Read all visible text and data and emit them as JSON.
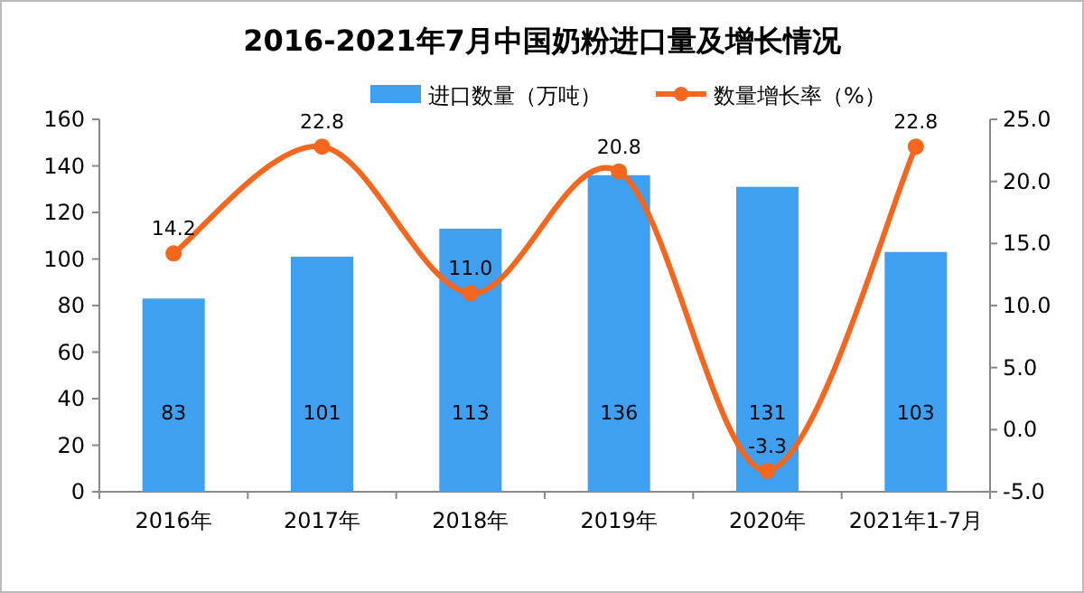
{
  "chart_data": {
    "type": "bar",
    "title": "2016-2021年7月中国奶粉进口量及增长情况",
    "categories": [
      "2016年",
      "2017年",
      "2018年",
      "2019年",
      "2020年",
      "2021年1-7月"
    ],
    "series": [
      {
        "name": "进口数量（万吨）",
        "color": "#3f9ff0",
        "values": [
          83,
          101,
          113,
          136,
          131,
          103
        ]
      },
      {
        "name": "数量增长率（%）",
        "type": "line",
        "axis": "y2",
        "color": "#f5661e",
        "marker": "circle",
        "values": [
          14.2,
          22.8,
          11.0,
          20.8,
          -3.3,
          22.8
        ],
        "value_labels": [
          "14.2",
          "22.8",
          "11.0",
          "20.8",
          "-3.3",
          "22.8"
        ]
      }
    ],
    "ylim": [
      0,
      160
    ],
    "yticks": [
      0,
      20,
      40,
      60,
      80,
      100,
      120,
      140,
      160
    ],
    "y2lim": [
      -5,
      25
    ],
    "y2ticks": [
      {
        "value": -5,
        "label": "-5.0"
      },
      {
        "value": 0,
        "label": "0.0"
      },
      {
        "value": 5,
        "label": "5.0"
      },
      {
        "value": 10,
        "label": "10.0"
      },
      {
        "value": 15,
        "label": "15.0"
      },
      {
        "value": 20,
        "label": "20.0"
      },
      {
        "value": 25,
        "label": "25.0"
      }
    ],
    "data_labels": true,
    "legend": "top",
    "grid": false
  }
}
